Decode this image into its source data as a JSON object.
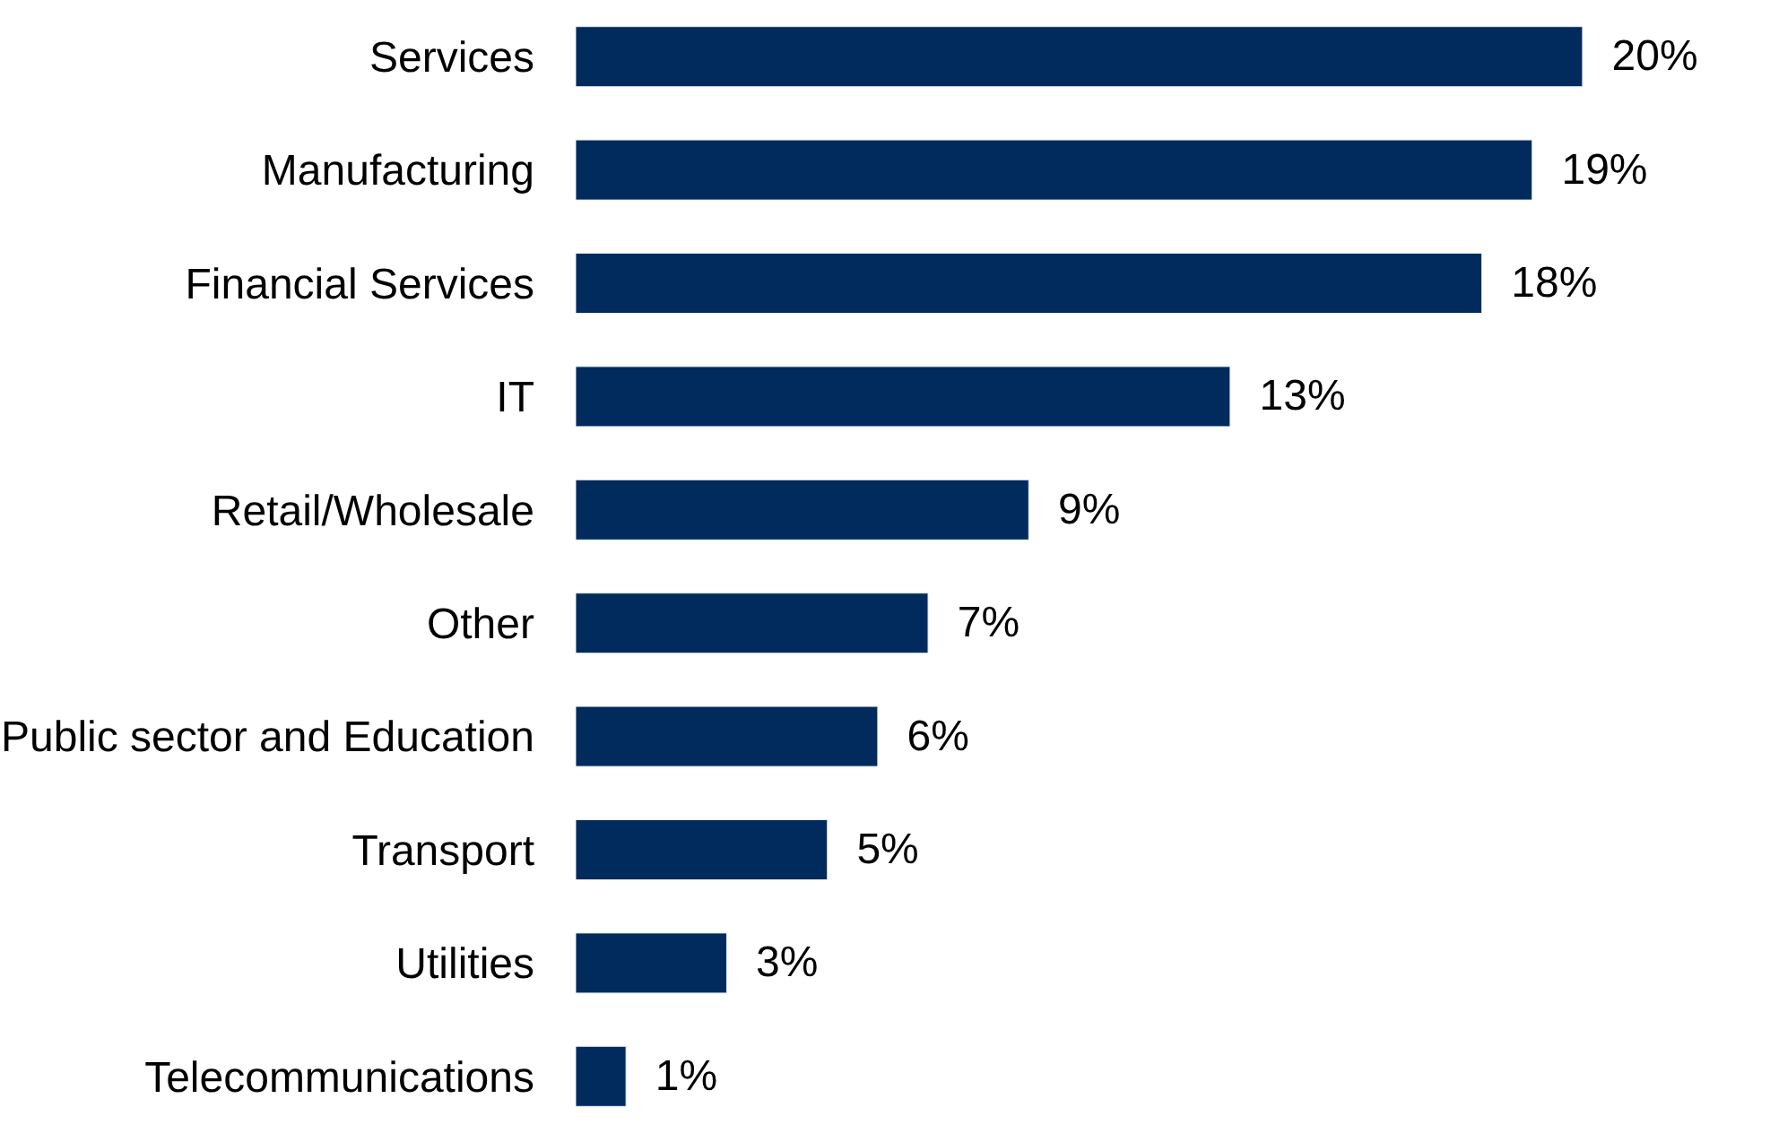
{
  "chart_data": {
    "type": "bar",
    "orientation": "horizontal",
    "categories": [
      "Services",
      "Manufacturing",
      "Financial Services",
      "IT",
      "Retail/Wholesale",
      "Other",
      "Public sector and Education",
      "Transport",
      "Utilities",
      "Telecommunications"
    ],
    "values": [
      20,
      19,
      18,
      13,
      9,
      7,
      6,
      5,
      3,
      1
    ],
    "value_labels": [
      "20%",
      "19%",
      "18%",
      "13%",
      "9%",
      "7%",
      "6%",
      "5%",
      "3%",
      "1%"
    ],
    "color": "#002b5c"
  }
}
